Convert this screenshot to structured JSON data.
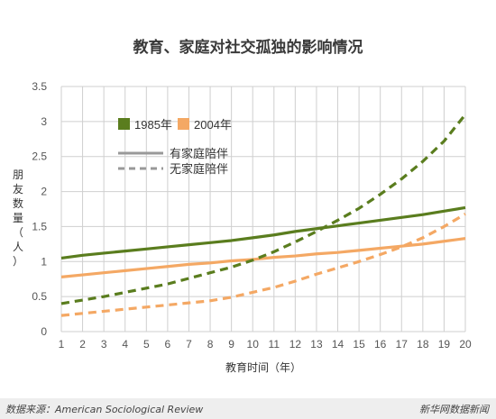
{
  "chart_data": {
    "type": "line",
    "title": "教育、家庭对社交孤独的影响情况",
    "xlabel": "教育时间（年）",
    "ylabel": "朋友数量（人）",
    "x": [
      1,
      2,
      3,
      4,
      5,
      6,
      7,
      8,
      9,
      10,
      11,
      12,
      13,
      14,
      15,
      16,
      17,
      18,
      19,
      20
    ],
    "xlim": [
      1,
      20
    ],
    "ylim": [
      0,
      3.5
    ],
    "yticks": [
      "0",
      "0.5",
      "1",
      "1.5",
      "2",
      "2.5",
      "3",
      "3.5"
    ],
    "grid": true,
    "legend_years": [
      {
        "label": "1985年",
        "color": "#5a7d1e"
      },
      {
        "label": "2004年",
        "color": "#f4a864"
      }
    ],
    "legend_styles": [
      {
        "label": "有家庭陪伴",
        "dash": "solid"
      },
      {
        "label": "无家庭陪伴",
        "dash": "dashed"
      }
    ],
    "series": [
      {
        "year": "1985年",
        "family": "有家庭陪伴",
        "color": "#5a7d1e",
        "dashed": false,
        "values": [
          1.05,
          1.09,
          1.12,
          1.15,
          1.18,
          1.21,
          1.24,
          1.27,
          1.3,
          1.34,
          1.38,
          1.43,
          1.47,
          1.51,
          1.55,
          1.59,
          1.63,
          1.67,
          1.72,
          1.77
        ]
      },
      {
        "year": "2004年",
        "family": "有家庭陪伴",
        "color": "#f4a864",
        "dashed": false,
        "values": [
          0.78,
          0.81,
          0.84,
          0.87,
          0.9,
          0.93,
          0.96,
          0.98,
          1.01,
          1.03,
          1.06,
          1.08,
          1.11,
          1.13,
          1.16,
          1.19,
          1.22,
          1.25,
          1.29,
          1.33
        ]
      },
      {
        "year": "1985年",
        "family": "无家庭陪伴",
        "color": "#5a7d1e",
        "dashed": true,
        "values": [
          0.4,
          0.45,
          0.5,
          0.56,
          0.62,
          0.68,
          0.76,
          0.84,
          0.92,
          1.02,
          1.14,
          1.28,
          1.43,
          1.59,
          1.76,
          1.96,
          2.18,
          2.43,
          2.72,
          3.1
        ]
      },
      {
        "year": "2004年",
        "family": "无家庭陪伴",
        "color": "#f4a864",
        "dashed": true,
        "values": [
          0.23,
          0.26,
          0.29,
          0.32,
          0.35,
          0.38,
          0.41,
          0.44,
          0.49,
          0.56,
          0.63,
          0.72,
          0.82,
          0.91,
          1.0,
          1.1,
          1.21,
          1.34,
          1.5,
          1.68
        ]
      }
    ]
  },
  "footer": {
    "source": "数据来源：American Sociological Review",
    "brand": "新华网数据新闻"
  }
}
